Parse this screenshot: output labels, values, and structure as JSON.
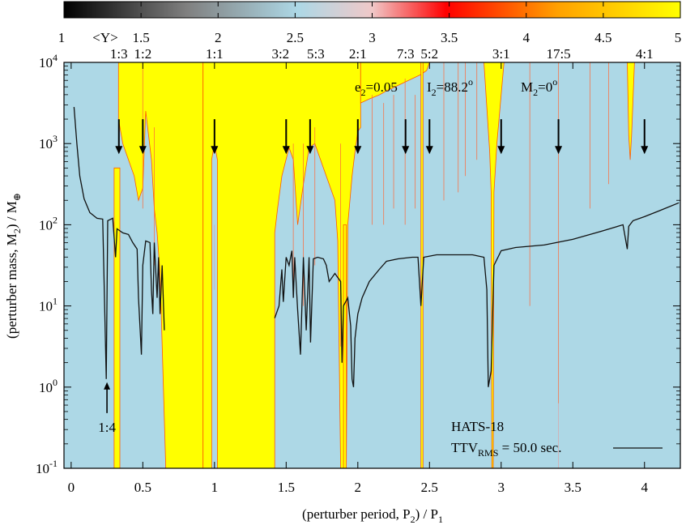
{
  "chart_data": {
    "type": "heatmap",
    "colorbar": {
      "label": "<Y>",
      "range": [
        1,
        5
      ],
      "ticks": [
        "1",
        "1.5",
        "2",
        "2.5",
        "3",
        "3.5",
        "4",
        "4.5",
        "5"
      ],
      "colors": [
        "#000000",
        "#add8e6",
        "#ff0000",
        "#ffff00"
      ]
    },
    "xlabel": "(perturber period, P",
    "xlabel_sub": "2",
    "xlabel_tail": ") / P",
    "xlabel_sub2": "1",
    "ylabel_pre": "(perturber mass, M",
    "ylabel_sub": "2",
    "ylabel_mid": ") / M",
    "ylabel_sym": "⊕",
    "xlim": [
      -0.05,
      4.25
    ],
    "ylim_log10": [
      -1,
      4
    ],
    "x_ticks": [
      {
        "v": 0,
        "label": "0"
      },
      {
        "v": 0.5,
        "label": "0.5"
      },
      {
        "v": 1,
        "label": "1"
      },
      {
        "v": 1.5,
        "label": "1.5"
      },
      {
        "v": 2,
        "label": "2"
      },
      {
        "v": 2.5,
        "label": "2.5"
      },
      {
        "v": 3,
        "label": "3"
      },
      {
        "v": 3.5,
        "label": "3.5"
      },
      {
        "v": 4,
        "label": "4"
      }
    ],
    "y_ticks": [
      {
        "exp": -1,
        "base": "10",
        "sup": "-1"
      },
      {
        "exp": 0,
        "base": "10",
        "sup": "0"
      },
      {
        "exp": 1,
        "base": "10",
        "sup": "1"
      },
      {
        "exp": 2,
        "base": "10",
        "sup": "2"
      },
      {
        "exp": 3,
        "base": "10",
        "sup": "3"
      },
      {
        "exp": 4,
        "base": "10",
        "sup": "4"
      }
    ],
    "resonances": [
      {
        "x": 0.333,
        "label": "1:3"
      },
      {
        "x": 0.5,
        "label": "1:2"
      },
      {
        "x": 1.0,
        "label": "1:1"
      },
      {
        "x": 1.5,
        "label": "3:2"
      },
      {
        "x": 1.667,
        "label": "5:3"
      },
      {
        "x": 2.0,
        "label": "2:1"
      },
      {
        "x": 2.333,
        "label": "7:3"
      },
      {
        "x": 2.5,
        "label": "5:2"
      },
      {
        "x": 3.0,
        "label": "3:1"
      },
      {
        "x": 3.4,
        "label": "17:5"
      },
      {
        "x": 4.0,
        "label": "4:1"
      }
    ],
    "resonance_14": {
      "x": 0.25,
      "label": "1:4"
    },
    "params": [
      {
        "name": "e",
        "sub": "2",
        "value": "=0.05"
      },
      {
        "name": "I",
        "sub": "2",
        "value": "=88.2",
        "sup": "o"
      },
      {
        "name": "M",
        "sub": "2",
        "value": "=0",
        "sup": "o"
      }
    ],
    "system": "HATS-18",
    "legend": {
      "prefix": "TTV",
      "sub": "RMS",
      "value": " = 50.0 sec."
    },
    "ttv_curve_log10_mass": [
      [
        0.02,
        3.45
      ],
      [
        0.04,
        3.0
      ],
      [
        0.06,
        2.6
      ],
      [
        0.09,
        2.32
      ],
      [
        0.13,
        2.15
      ],
      [
        0.18,
        2.08
      ],
      [
        0.22,
        2.07
      ],
      [
        0.245,
        0.1
      ],
      [
        0.255,
        2.05
      ],
      [
        0.29,
        2.08
      ],
      [
        0.31,
        1.6
      ],
      [
        0.32,
        1.95
      ],
      [
        0.36,
        1.9
      ],
      [
        0.4,
        1.88
      ],
      [
        0.43,
        1.78
      ],
      [
        0.46,
        1.7
      ],
      [
        0.47,
        1.1
      ],
      [
        0.49,
        0.4
      ],
      [
        0.5,
        1.5
      ],
      [
        0.52,
        1.8
      ],
      [
        0.55,
        1.78
      ],
      [
        0.56,
        1.2
      ],
      [
        0.57,
        0.9
      ],
      [
        0.58,
        1.78
      ],
      [
        0.6,
        1.1
      ],
      [
        0.61,
        1.6
      ],
      [
        0.62,
        0.9
      ],
      [
        0.635,
        1.5
      ],
      [
        0.65,
        0.7
      ],
      null,
      [
        1.42,
        0.85
      ],
      [
        1.45,
        1.0
      ],
      [
        1.47,
        1.45
      ],
      [
        1.48,
        1.05
      ],
      [
        1.5,
        1.6
      ],
      [
        1.52,
        1.5
      ],
      [
        1.54,
        1.68
      ],
      [
        1.55,
        1.1
      ],
      [
        1.56,
        1.6
      ],
      [
        1.58,
        0.95
      ],
      [
        1.6,
        0.4
      ],
      [
        1.62,
        1.6
      ],
      [
        1.64,
        0.7
      ],
      [
        1.66,
        1.6
      ],
      [
        1.67,
        0.55
      ],
      [
        1.69,
        1.58
      ],
      [
        1.72,
        1.6
      ],
      [
        1.76,
        1.58
      ],
      [
        1.78,
        1.5
      ],
      [
        1.8,
        1.3
      ],
      [
        1.84,
        1.4
      ],
      [
        1.86,
        1.35
      ],
      [
        1.88,
        1.3
      ],
      [
        1.89,
        0.3
      ],
      [
        1.9,
        1.0
      ],
      [
        1.93,
        1.1
      ],
      [
        1.95,
        0.75
      ],
      [
        1.96,
        0.1
      ],
      [
        1.97,
        0.0
      ],
      [
        1.98,
        0.6
      ],
      [
        2.0,
        0.9
      ],
      [
        2.03,
        1.1
      ],
      [
        2.08,
        1.3
      ],
      [
        2.15,
        1.45
      ],
      [
        2.2,
        1.55
      ],
      [
        2.28,
        1.58
      ],
      [
        2.38,
        1.6
      ],
      [
        2.42,
        1.6
      ],
      [
        2.44,
        1.0
      ],
      [
        2.46,
        1.6
      ],
      [
        2.55,
        1.63
      ],
      [
        2.65,
        1.63
      ],
      [
        2.8,
        1.63
      ],
      [
        2.88,
        1.6
      ],
      [
        2.9,
        1.2
      ],
      [
        2.91,
        0.0
      ],
      [
        2.93,
        0.2
      ],
      [
        2.95,
        1.5
      ],
      [
        3.0,
        1.68
      ],
      [
        3.1,
        1.72
      ],
      [
        3.3,
        1.75
      ],
      [
        3.5,
        1.82
      ],
      [
        3.7,
        1.92
      ],
      [
        3.85,
        2.0
      ],
      [
        3.88,
        1.7
      ],
      [
        3.89,
        1.98
      ],
      [
        3.92,
        2.05
      ],
      [
        4.0,
        2.1
      ],
      [
        4.1,
        2.17
      ],
      [
        4.24,
        2.27
      ]
    ]
  }
}
